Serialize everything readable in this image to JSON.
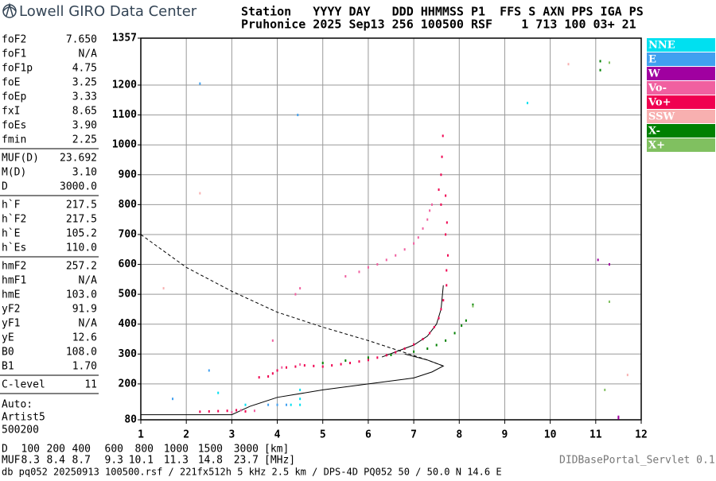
{
  "logo": "Lowell GIRO Data Center",
  "station_header": [
    "Station   YYYY DAY   DDD HHMMSS P1  FFS S AXN PPS IGA PS",
    "Pruhonice 2025 Sep13 256 100500 RSF    1 713 100 03+ 21"
  ],
  "parameters": [
    [
      {
        "name": "foF2",
        "value": "7.650"
      },
      {
        "name": "foF1",
        "value": "N/A"
      },
      {
        "name": "foF1p",
        "value": "4.75"
      },
      {
        "name": "foE",
        "value": "3.25"
      },
      {
        "name": "foEp",
        "value": "3.33"
      },
      {
        "name": "fxI",
        "value": "8.65"
      },
      {
        "name": "foEs",
        "value": "3.90"
      },
      {
        "name": "fmin",
        "value": "2.25"
      }
    ],
    [
      {
        "name": "MUF(D)",
        "value": "23.692"
      },
      {
        "name": "M(D)",
        "value": "3.10"
      },
      {
        "name": "D",
        "value": "3000.0"
      }
    ],
    [
      {
        "name": "h`F",
        "value": "217.5"
      },
      {
        "name": "h`F2",
        "value": "217.5"
      },
      {
        "name": "h`E",
        "value": "105.2"
      },
      {
        "name": "h`Es",
        "value": "110.0"
      }
    ],
    [
      {
        "name": "hmF2",
        "value": "257.2"
      },
      {
        "name": "hmF1",
        "value": "N/A"
      },
      {
        "name": "hmE",
        "value": "103.0"
      },
      {
        "name": "yF2",
        "value": "91.9"
      },
      {
        "name": "yF1",
        "value": "N/A"
      },
      {
        "name": "yE",
        "value": "12.6"
      },
      {
        "name": "B0",
        "value": "108.0"
      },
      {
        "name": "B1",
        "value": "1.70"
      }
    ],
    [
      {
        "name": "C-level",
        "value": "11"
      }
    ]
  ],
  "auto": [
    "Auto:",
    "Artist5",
    "500200"
  ],
  "distance_table": {
    "d_label": "D",
    "d_values": [
      100,
      200,
      400,
      600,
      800,
      1000,
      1500,
      3000
    ],
    "d_unit": "[km]",
    "muf_label": "MUF",
    "muf_values": [
      8.3,
      8.4,
      8.7,
      9.3,
      10.1,
      11.3,
      14.8,
      23.7
    ],
    "muf_unit": "[MHz]"
  },
  "footer": "db pq052 20250913 100500.rsf / 221fx512h 5 kHz 2.5 km / DPS-4D PQ052 50 / 50.0 N 14.6 E",
  "servlet": "DIDBasePortal_Servlet 0.1",
  "chart_data": {
    "type": "scatter",
    "xlim": [
      1,
      12
    ],
    "xticks": [
      1,
      2,
      3,
      4,
      5,
      6,
      7,
      8,
      9,
      10,
      11,
      12
    ],
    "ylim": [
      80,
      1357
    ],
    "yticks": [
      80,
      200,
      300,
      400,
      500,
      600,
      700,
      800,
      900,
      1000,
      1100,
      1200,
      1357
    ],
    "grid": true,
    "series": [
      {
        "name": "NNE",
        "color": "#00e0f0",
        "x": [
          4.5,
          4.5,
          4.5,
          2.7,
          9.5,
          4.3,
          3.3
        ],
        "values": [
          130,
          150,
          180,
          170,
          1140,
          130,
          130
        ]
      },
      {
        "name": "E",
        "color": "#40a0f0",
        "x": [
          2.3,
          4.0,
          4.2,
          4.45,
          2.5,
          1.7,
          3.8
        ],
        "values": [
          1205,
          130,
          130,
          1100,
          245,
          150,
          130
        ]
      },
      {
        "name": "W",
        "color": "#a000a0",
        "x": [
          11.5,
          11.5,
          11.3,
          11.05
        ],
        "values": [
          85,
          90,
          600,
          615
        ]
      },
      {
        "name": "Vo-",
        "color": "#f060a0",
        "x": [
          5.5,
          5.8,
          6.0,
          6.2,
          6.4,
          6.6,
          6.8,
          7.0,
          7.1,
          7.2,
          7.3,
          7.35,
          7.4,
          3.9,
          4.4,
          4.5,
          3.2,
          3.5,
          3.0,
          4.1,
          4.5
        ],
        "values": [
          560,
          575,
          590,
          600,
          615,
          630,
          650,
          670,
          690,
          720,
          750,
          780,
          800,
          345,
          500,
          520,
          112,
          110,
          105,
          255,
          265
        ]
      },
      {
        "name": "Vo+",
        "color": "#f00050",
        "x": [
          2.3,
          2.5,
          2.7,
          2.9,
          3.1,
          3.3,
          3.6,
          3.8,
          3.9,
          4.0,
          4.2,
          4.4,
          4.6,
          4.8,
          5.0,
          5.2,
          5.4,
          5.6,
          5.8,
          6.0,
          6.2,
          6.4,
          6.6,
          6.8,
          7.0,
          7.2,
          7.35,
          7.45,
          7.55,
          7.6,
          7.65,
          7.72,
          7.72,
          7.75,
          7.7,
          7.73,
          7.6,
          7.55,
          7.6,
          7.62,
          7.64,
          7.7
        ],
        "values": [
          107,
          108,
          109,
          110,
          112,
          108,
          222,
          225,
          235,
          245,
          255,
          258,
          262,
          260,
          258,
          262,
          266,
          270,
          275,
          280,
          288,
          296,
          306,
          318,
          332,
          350,
          370,
          390,
          420,
          450,
          480,
          530,
          580,
          630,
          700,
          740,
          800,
          850,
          900,
          960,
          1030,
          830
        ]
      },
      {
        "name": "SSW",
        "color": "#f8b0b0",
        "x": [
          2.3,
          1.5,
          10.4,
          11.7
        ],
        "values": [
          838,
          520,
          1270,
          230
        ]
      },
      {
        "name": "X-",
        "color": "#008000",
        "x": [
          5.0,
          5.5,
          6.0,
          6.5,
          7.0,
          7.3,
          7.5,
          7.7,
          7.9,
          8.05,
          8.15,
          8.3,
          11.1,
          11.1
        ],
        "values": [
          270,
          278,
          288,
          297,
          308,
          318,
          330,
          345,
          370,
          395,
          412,
          465,
          1280,
          1250
        ]
      },
      {
        "name": "X+",
        "color": "#80c060",
        "x": [
          8.3,
          11.3,
          11.3,
          11.2
        ],
        "values": [
          460,
          475,
          1275,
          180
        ]
      }
    ],
    "profile_lines": [
      {
        "dashed": false,
        "x": [
          1,
          3,
          3.4,
          4,
          5,
          6,
          7,
          7.4,
          7.65,
          7.3,
          6.8
        ],
        "values": [
          97,
          97,
          125,
          155,
          180,
          200,
          220,
          240,
          260,
          280,
          300
        ]
      },
      {
        "dashed": true,
        "x": [
          1,
          2,
          3,
          4,
          5,
          6,
          6.8,
          7.3,
          7.65
        ],
        "values": [
          700,
          590,
          510,
          440,
          390,
          345,
          305,
          280,
          260
        ]
      },
      {
        "dashed": false,
        "x": [
          6.3,
          7,
          7.3,
          7.5,
          7.6,
          7.65
        ],
        "values": [
          290,
          330,
          360,
          400,
          450,
          530
        ]
      }
    ]
  }
}
